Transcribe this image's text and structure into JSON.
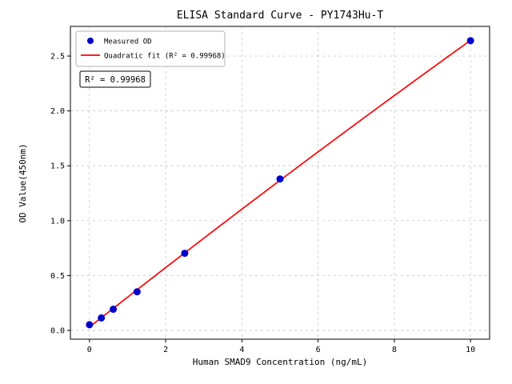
{
  "chart_data": {
    "type": "scatter",
    "title": "ELISA Standard Curve - PY1743Hu-T",
    "xlabel": "Human SMAD9 Concentration (ng/mL)",
    "ylabel": "OD Value(450nm)",
    "xlim": [
      -0.5,
      10.5
    ],
    "ylim": [
      -0.08,
      2.77
    ],
    "xticks": [
      0,
      2,
      4,
      6,
      8,
      10
    ],
    "xticklabels": [
      "0",
      "2",
      "4",
      "6",
      "8",
      "10"
    ],
    "yticks": [
      0.0,
      0.5,
      1.0,
      1.5,
      2.0,
      2.5
    ],
    "yticklabels": [
      "0.0",
      "0.5",
      "1.0",
      "1.5",
      "2.0",
      "2.5"
    ],
    "grid": true,
    "grid_style": "dashed",
    "annotation": "R² = 0.99968",
    "legend": {
      "position": "upper-left",
      "entries": [
        {
          "label": "Measured OD",
          "marker": "dot",
          "color": "#0000cd"
        },
        {
          "label": "Quadratic fit (R² = 0.99968)",
          "marker": "line",
          "color": "#ff0000"
        }
      ]
    },
    "series": [
      {
        "name": "Measured OD",
        "type": "scatter",
        "color": "#0000cd",
        "x": [
          0,
          0.312,
          0.625,
          1.25,
          2.5,
          5,
          10
        ],
        "y": [
          0.052,
          0.114,
          0.193,
          0.352,
          0.703,
          1.38,
          2.64
        ]
      },
      {
        "name": "Quadratic fit",
        "type": "quadratic-fit",
        "color": "#ff0000",
        "r_squared": "0.99968"
      }
    ],
    "colors": {
      "points": "#0000cd",
      "fit_line": "#ff0000",
      "grid": "#bcbcbc",
      "axis": "#000000",
      "legend_border": "#b3b3b3",
      "annotation_border": "#000000"
    }
  }
}
